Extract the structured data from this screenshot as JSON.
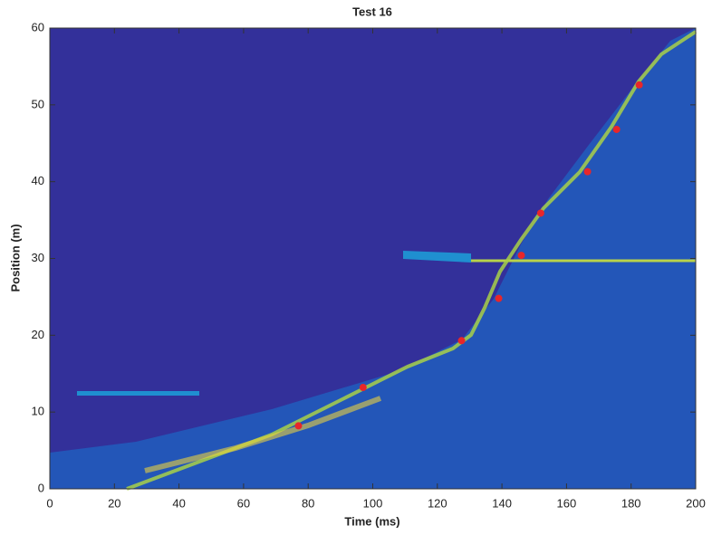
{
  "chart_data": {
    "type": "scatter",
    "title": "Test 16",
    "x_label": "Time (ms)",
    "y_label": "Position (m)",
    "series": [
      {
        "color": "#e8262a",
        "x": [
          77,
          97,
          127.5,
          139,
          146,
          152,
          166.5,
          175.5,
          182.5
        ],
        "values": [
          8.2,
          13.2,
          19.3,
          24.8,
          30.4,
          35.9,
          41.3,
          46.8,
          52.6
        ]
      }
    ],
    "xlim": [
      0,
      200
    ],
    "xticks": [
      0,
      20,
      40,
      60,
      80,
      100,
      120,
      140,
      160,
      180,
      200
    ],
    "ylim": [
      0,
      60
    ],
    "yticks": [
      0,
      10,
      20,
      30,
      40,
      50,
      60
    ],
    "grid": false
  }
}
